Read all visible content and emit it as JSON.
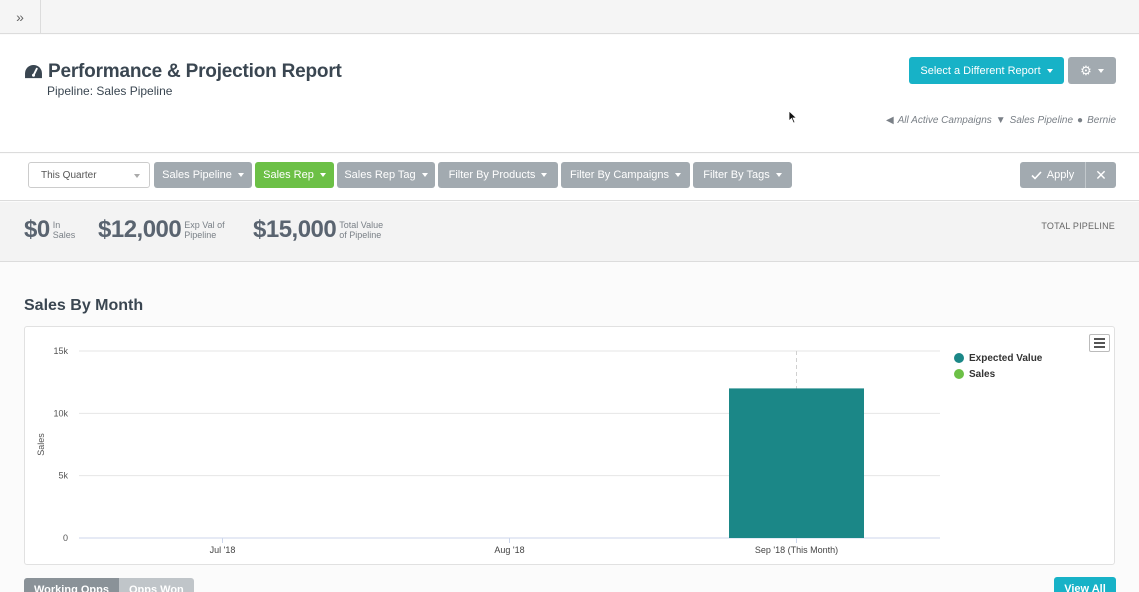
{
  "topbar": {
    "expand_icon": "double-chevron-right-icon",
    "expand_glyph": "»"
  },
  "header": {
    "title": "Performance & Projection Report",
    "subtitle": "Pipeline: Sales Pipeline",
    "report_button": "Select a Different Report",
    "settings_icon": "gear-icon",
    "meta": {
      "campaigns": "All Active Campaigns",
      "pipeline": "Sales Pipeline",
      "user": "Bernie"
    }
  },
  "filters": {
    "period_select": "This Quarter",
    "buttons": [
      {
        "label": "Sales Pipeline"
      },
      {
        "label": "Sales Rep"
      },
      {
        "label": "Sales Rep Tag"
      },
      {
        "label": "Filter By Products"
      },
      {
        "label": "Filter By Campaigns"
      },
      {
        "label": "Filter By Tags"
      }
    ],
    "apply": "Apply",
    "close_glyph": "✕"
  },
  "stats": [
    {
      "value": "$0",
      "label_1": "In",
      "label_2": "Sales"
    },
    {
      "value": "$12,000",
      "label_1": "Exp Val of",
      "label_2": "Pipeline"
    },
    {
      "value": "$15,000",
      "label_1": "Total Value",
      "label_2": "of Pipeline"
    }
  ],
  "total_pipeline": "TOTAL PIPELINE",
  "section_title": "Sales By Month",
  "colors": {
    "accent": "#17b2c7",
    "green": "#6cc046",
    "gray_button": "#a2aab0",
    "expected_value": "#1b8787",
    "sales": "#6cc046"
  },
  "chart_data": {
    "type": "bar",
    "categories": [
      "Jul '18",
      "Aug '18",
      "Sep '18 (This Month)"
    ],
    "series": [
      {
        "name": "Expected Value",
        "values": [
          0,
          0,
          12000
        ],
        "color": "#1b8787"
      },
      {
        "name": "Sales",
        "values": [
          0,
          0,
          0
        ],
        "color": "#6cc046"
      }
    ],
    "ylabel": "Sales",
    "ylim": [
      0,
      15000
    ],
    "yticks": [
      0,
      5000,
      10000,
      15000
    ],
    "ytick_labels": [
      "0",
      "5k",
      "10k",
      "15k"
    ],
    "grid": true,
    "legend": "top-right",
    "current_month_index": 2
  },
  "bottom": {
    "tabs": [
      "Working Opps",
      "Opps Won"
    ],
    "view_all": "View All"
  }
}
